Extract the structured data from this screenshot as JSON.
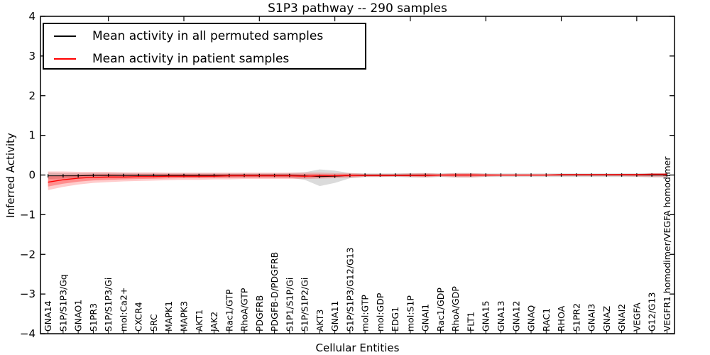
{
  "title": "S1P3 pathway -- 290 samples",
  "axes": {
    "x_label": "Cellular Entities",
    "y_label": "Inferred Activity",
    "y_ticks": [
      4,
      3,
      2,
      1,
      0,
      -1,
      -2,
      -3,
      -4
    ],
    "y_min": -4,
    "y_max": 4
  },
  "legend": {
    "entries": [
      {
        "label": "Mean activity in all permuted samples",
        "color": "#000000"
      },
      {
        "label": "Mean activity in patient samples",
        "color": "#ff0000"
      }
    ]
  },
  "chart_data": {
    "type": "line",
    "title": "S1P3 pathway -- 290 samples",
    "xlabel": "Cellular Entities",
    "ylabel": "Inferred Activity",
    "ylim": [
      -4,
      4
    ],
    "grid": false,
    "legend_position": "upper left",
    "categories": [
      "GNA14",
      "S1P/S1P3/Gq",
      "GNAO1",
      "S1PR3",
      "S1P/S1P3/Gi",
      "mol:Ca2+",
      "CXCR4",
      "SRC",
      "MAPK1",
      "MAPK3",
      "AKT1",
      "JAK2",
      "Rac1/GTP",
      "RhoA/GTP",
      "PDGFRB",
      "PDGFB-D/PDGFRB",
      "S1P1/S1P/Gi",
      "S1P/S1P2/Gi",
      "AKT3",
      "GNA11",
      "S1P/S1P3/G12/G13",
      "mol:GTP",
      "mol:GDP",
      "EDG1",
      "mol:S1P",
      "GNAI1",
      "Rac1/GDP",
      "RhoA/GDP",
      "FLT1",
      "GNA15",
      "GNA13",
      "GNA12",
      "GNAQ",
      "RAC1",
      "RHOA",
      "S1PR2",
      "GNAI3",
      "GNAZ",
      "GNAI2",
      "VEGFA",
      "G12/G13",
      "VEGFR1 homodimer/VEGFA homodimer"
    ],
    "series": [
      {
        "name": "Mean activity in all permuted samples",
        "color": "#000000",
        "band_color": "#b0b0b0",
        "values": [
          -0.02,
          -0.02,
          -0.02,
          -0.01,
          -0.01,
          -0.01,
          -0.01,
          -0.01,
          -0.01,
          -0.01,
          -0.01,
          -0.01,
          -0.01,
          -0.01,
          -0.01,
          -0.01,
          -0.01,
          -0.02,
          -0.04,
          -0.03,
          -0.01,
          0,
          0,
          0,
          0,
          0,
          0,
          0,
          0,
          0,
          0,
          0,
          0,
          0,
          0,
          0,
          0,
          0,
          0,
          0,
          0,
          0
        ],
        "band_upper": [
          0.06,
          0.05,
          0.05,
          0.05,
          0.05,
          0.05,
          0.04,
          0.04,
          0.04,
          0.04,
          0.04,
          0.04,
          0.04,
          0.04,
          0.04,
          0.04,
          0.05,
          0.07,
          0.14,
          0.11,
          0.05,
          0.04,
          0.04,
          0.04,
          0.05,
          0.05,
          0.04,
          0.05,
          0.05,
          0.04,
          0.04,
          0.04,
          0.04,
          0.04,
          0.04,
          0.04,
          0.04,
          0.04,
          0.04,
          0.04,
          0.05,
          0.05
        ],
        "band_lower": [
          -0.1,
          -0.09,
          -0.08,
          -0.07,
          -0.07,
          -0.07,
          -0.06,
          -0.06,
          -0.06,
          -0.06,
          -0.06,
          -0.06,
          -0.06,
          -0.06,
          -0.06,
          -0.06,
          -0.07,
          -0.12,
          -0.28,
          -0.2,
          -0.08,
          -0.05,
          -0.05,
          -0.05,
          -0.06,
          -0.06,
          -0.05,
          -0.06,
          -0.06,
          -0.05,
          -0.05,
          -0.05,
          -0.05,
          -0.05,
          -0.05,
          -0.05,
          -0.05,
          -0.05,
          -0.05,
          -0.05,
          -0.06,
          -0.06
        ]
      },
      {
        "name": "Mean activity in patient samples",
        "color": "#ff0000",
        "band_color": "#ff0000",
        "values": [
          -0.18,
          -0.12,
          -0.08,
          -0.06,
          -0.05,
          -0.05,
          -0.04,
          -0.04,
          -0.03,
          -0.03,
          -0.03,
          -0.03,
          -0.02,
          -0.02,
          -0.02,
          -0.02,
          -0.02,
          -0.03,
          -0.02,
          -0.02,
          -0.01,
          -0.01,
          -0.01,
          -0.01,
          -0.01,
          -0.01,
          0,
          0,
          0,
          0,
          0,
          0,
          0,
          0,
          0.01,
          0.01,
          0.01,
          0.01,
          0.01,
          0.01,
          0.02,
          0.02
        ],
        "band_upper": [
          0.09,
          0.09,
          0.08,
          0.08,
          0.08,
          0.07,
          0.07,
          0.07,
          0.06,
          0.06,
          0.06,
          0.06,
          0.06,
          0.06,
          0.06,
          0.06,
          0.06,
          0.06,
          0.06,
          0.05,
          0.05,
          0.03,
          0.03,
          0.03,
          0.04,
          0.05,
          0.03,
          0.05,
          0.05,
          0.03,
          0.02,
          0.02,
          0.02,
          0.02,
          0.02,
          0.02,
          0.02,
          0.02,
          0.03,
          0.03,
          0.04,
          0.04
        ],
        "band_lower": [
          -0.38,
          -0.3,
          -0.24,
          -0.2,
          -0.18,
          -0.16,
          -0.15,
          -0.14,
          -0.13,
          -0.12,
          -0.12,
          -0.11,
          -0.11,
          -0.1,
          -0.1,
          -0.1,
          -0.1,
          -0.1,
          -0.09,
          -0.08,
          -0.07,
          -0.05,
          -0.05,
          -0.04,
          -0.05,
          -0.06,
          -0.04,
          -0.06,
          -0.06,
          -0.04,
          -0.03,
          -0.03,
          -0.03,
          -0.03,
          -0.03,
          -0.03,
          -0.03,
          -0.03,
          -0.03,
          -0.04,
          -0.05,
          -0.05
        ]
      }
    ]
  }
}
